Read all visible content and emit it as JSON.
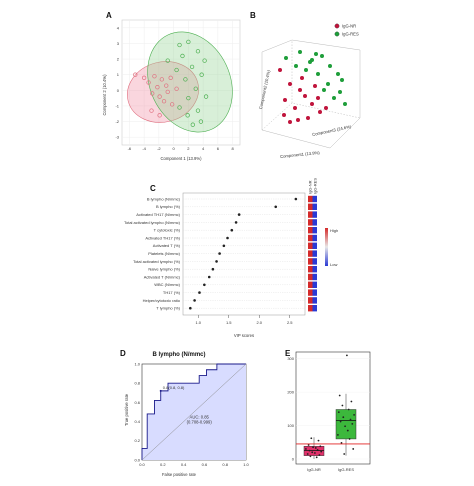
{
  "chart_data": [
    {
      "panel": "A",
      "type": "scatter",
      "xlabel": "Component 1 (13.9%)",
      "ylabel": "Component 2 (10.4%)",
      "xticks": [
        "-6",
        "-4",
        "-2",
        "0",
        "2",
        "4",
        "6",
        "8"
      ],
      "yticks": [
        "4",
        "3",
        "2",
        "1",
        "0",
        "-1",
        "-2",
        "-3"
      ],
      "grid": true,
      "series": [
        {
          "name": "IgG-NR",
          "color": "#e07080",
          "x": [
            -5.2,
            -4.0,
            -3.4,
            -2.6,
            -2.2,
            -1.6,
            -1.0,
            -0.4,
            -2.9,
            -1.9,
            -1.3,
            -0.8,
            -3.0,
            -1.9,
            -0.2,
            0.4
          ],
          "y": [
            1.0,
            0.8,
            0.5,
            0.9,
            0.2,
            0.7,
            0.3,
            0.8,
            -0.2,
            -0.4,
            -0.7,
            -0.1,
            -1.3,
            -1.6,
            -0.9,
            0.1
          ]
        },
        {
          "name": "IgG-RES",
          "color": "#4caf50",
          "x": [
            0.8,
            2.0,
            3.3,
            4.2,
            1.2,
            2.5,
            3.8,
            0.4,
            1.6,
            3.0,
            4.4,
            2.0,
            3.3,
            0.8,
            1.9,
            3.7,
            2.6,
            -0.8
          ],
          "y": [
            2.9,
            3.1,
            2.5,
            1.9,
            2.2,
            1.5,
            1.0,
            1.3,
            0.7,
            0.1,
            -0.4,
            -0.5,
            -1.3,
            -1.1,
            -1.6,
            -2.0,
            -2.2,
            1.9
          ]
        }
      ]
    },
    {
      "panel": "B",
      "type": "scatter",
      "xlabel": "Component1 (13.9%)",
      "ylabel": "Component2 (10.4%)",
      "zlabel": "Component3 (24.6%)",
      "legend": [
        "IgG-NR",
        "IgG-RES"
      ],
      "legend_position": "top-right",
      "series": [
        {
          "name": "IgG-NR",
          "color": "#c0143c"
        },
        {
          "name": "IgG-RES",
          "color": "#1e9e3a"
        }
      ]
    },
    {
      "panel": "C",
      "type": "scatter",
      "xlabel": "VIP scores",
      "xticks": [
        1.0,
        1.5,
        2.0,
        2.5
      ],
      "xlim": [
        0.75,
        2.75
      ],
      "categories": [
        "B lympho (N/mmc)",
        "B lympho (%)",
        "Activated TH17 (N/mmc)",
        "Total activated lympho (N/mmc)",
        "T cytotoxic (%)",
        "Activated TH17 (%)",
        "Activated T (%)",
        "Platelets (N/mmc)",
        "Total activated lympho (%)",
        "Naive lympho (%)",
        "Activated T (N/mmc)",
        "WBC (N/mmc)",
        "TH17 (%)",
        "Helper/cytotoxic ratio",
        "T lympho (%)"
      ],
      "values": [
        2.6,
        2.27,
        1.67,
        1.62,
        1.55,
        1.48,
        1.42,
        1.35,
        1.3,
        1.24,
        1.18,
        1.1,
        1.02,
        0.94,
        0.87
      ],
      "heat_columns": [
        "IgG-NR",
        "IgG-RES"
      ],
      "heat_legend": {
        "high": "High",
        "low": "Low"
      },
      "heat_colors": {
        "nr": "#d42a2a",
        "res": "#2a3ad4"
      }
    },
    {
      "panel": "D",
      "type": "line",
      "title": "B lympho (N/mmc)",
      "xlabel": "False positive rate",
      "ylabel": "True positive rate",
      "xlim": [
        0,
        1
      ],
      "ylim": [
        0,
        1
      ],
      "ticks": [
        "0.0",
        "0.2",
        "0.4",
        "0.6",
        "0.8",
        "1.0"
      ],
      "roc_fpr": [
        0,
        0,
        0.05,
        0.05,
        0.12,
        0.12,
        0.18,
        0.18,
        0.25,
        0.25,
        0.55,
        0.55,
        0.62,
        0.62,
        0.72,
        0.72,
        1.0
      ],
      "roc_tpr": [
        0,
        0.12,
        0.12,
        0.48,
        0.48,
        0.62,
        0.62,
        0.72,
        0.72,
        0.8,
        0.8,
        0.88,
        0.88,
        0.94,
        0.94,
        1.0,
        1.0
      ],
      "auc_text": "AUC: 0.85",
      "ci_text": "(0.708-0.999)",
      "point_label": "0.8(0.8, 0.8)",
      "fill_color": "#d8dcff"
    },
    {
      "panel": "E",
      "type": "box",
      "categories": [
        "IgG-NR",
        "IgG-RES"
      ],
      "yticks": [
        0,
        100,
        200,
        300
      ],
      "ylim": [
        -15,
        320
      ],
      "threshold": 45,
      "boxes": [
        {
          "q1": 10,
          "median": 25,
          "q3": 38,
          "min": 0,
          "max": 65,
          "color": "#e0306a"
        },
        {
          "q1": 60,
          "median": 115,
          "q3": 148,
          "min": 10,
          "max": 195,
          "color": "#3cb83c"
        }
      ],
      "nr_points": [
        5,
        8,
        12,
        15,
        18,
        20,
        22,
        25,
        27,
        30,
        33,
        35,
        38,
        42,
        55,
        62
      ],
      "res_points": [
        15,
        30,
        48,
        60,
        72,
        85,
        98,
        105,
        112,
        118,
        125,
        132,
        140,
        148,
        160,
        172,
        190,
        310
      ]
    }
  ]
}
